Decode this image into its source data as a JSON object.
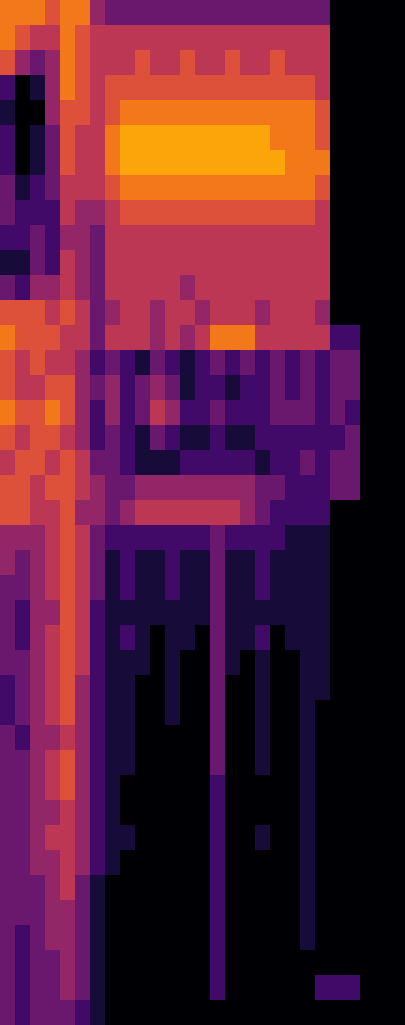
{
  "chart_data": {
    "type": "heatmap",
    "color": "inferno",
    "tick_labels": false,
    "zlim": [
      0,
      10
    ],
    "cells": [
      [
        7,
        7,
        7,
        6,
        7,
        7,
        4,
        3,
        3,
        3,
        3,
        3,
        3,
        3,
        3,
        3,
        3,
        3,
        3,
        3,
        3,
        3,
        0,
        0,
        0,
        0,
        0
      ],
      [
        7,
        6,
        5,
        5,
        7,
        6,
        5,
        5,
        5,
        5,
        5,
        5,
        5,
        5,
        5,
        5,
        5,
        5,
        5,
        5,
        5,
        5,
        0,
        0,
        0,
        0,
        0
      ],
      [
        6,
        4,
        3,
        4,
        7,
        6,
        5,
        5,
        5,
        6,
        5,
        5,
        6,
        5,
        5,
        6,
        5,
        5,
        6,
        5,
        5,
        5,
        0,
        0,
        0,
        0,
        0
      ],
      [
        2,
        0,
        1,
        4,
        7,
        6,
        5,
        6,
        6,
        6,
        6,
        6,
        6,
        6,
        6,
        6,
        6,
        6,
        6,
        6,
        6,
        5,
        0,
        0,
        0,
        0,
        0
      ],
      [
        1,
        0,
        0,
        4,
        6,
        6,
        5,
        6,
        7,
        7,
        7,
        7,
        7,
        7,
        7,
        7,
        7,
        7,
        7,
        7,
        7,
        6,
        0,
        0,
        0,
        0,
        0
      ],
      [
        2,
        0,
        1,
        3,
        6,
        5,
        5,
        7,
        8,
        8,
        8,
        8,
        8,
        8,
        8,
        8,
        8,
        8,
        7,
        7,
        7,
        6,
        0,
        0,
        0,
        0,
        0
      ],
      [
        2,
        0,
        1,
        3,
        6,
        5,
        5,
        7,
        8,
        8,
        8,
        8,
        8,
        8,
        8,
        8,
        8,
        8,
        8,
        7,
        7,
        7,
        0,
        0,
        0,
        0,
        0
      ],
      [
        3,
        1,
        2,
        3,
        5,
        5,
        5,
        6,
        7,
        7,
        7,
        7,
        7,
        7,
        7,
        7,
        7,
        7,
        7,
        7,
        7,
        6,
        0,
        0,
        0,
        0,
        0
      ],
      [
        3,
        2,
        2,
        2,
        5,
        4,
        4,
        5,
        6,
        6,
        6,
        6,
        6,
        6,
        6,
        6,
        6,
        6,
        6,
        6,
        6,
        5,
        0,
        0,
        0,
        0,
        0
      ],
      [
        2,
        2,
        3,
        2,
        4,
        4,
        3,
        5,
        5,
        5,
        5,
        5,
        5,
        5,
        5,
        5,
        5,
        5,
        5,
        5,
        5,
        5,
        0,
        0,
        0,
        0,
        0
      ],
      [
        1,
        1,
        3,
        2,
        5,
        4,
        3,
        5,
        5,
        5,
        5,
        5,
        5,
        5,
        5,
        5,
        5,
        5,
        5,
        5,
        5,
        5,
        0,
        0,
        0,
        0,
        0
      ],
      [
        3,
        2,
        4,
        4,
        5,
        4,
        3,
        5,
        5,
        5,
        5,
        5,
        4,
        5,
        5,
        5,
        5,
        5,
        5,
        5,
        5,
        5,
        0,
        0,
        0,
        0,
        0
      ],
      [
        6,
        6,
        6,
        5,
        6,
        5,
        3,
        4,
        5,
        5,
        4,
        5,
        5,
        4,
        5,
        5,
        5,
        4,
        5,
        5,
        5,
        4,
        0,
        0,
        0,
        0,
        0
      ],
      [
        7,
        6,
        6,
        6,
        5,
        5,
        3,
        5,
        5,
        5,
        4,
        5,
        4,
        5,
        7,
        7,
        7,
        5,
        5,
        5,
        5,
        5,
        2,
        2,
        0,
        0,
        0
      ],
      [
        6,
        5,
        6,
        5,
        5,
        4,
        2,
        3,
        2,
        1,
        3,
        2,
        1,
        2,
        3,
        2,
        3,
        2,
        3,
        2,
        3,
        2,
        3,
        3,
        0,
        0,
        0
      ],
      [
        6,
        5,
        5,
        6,
        6,
        4,
        3,
        4,
        2,
        3,
        4,
        3,
        1,
        2,
        2,
        1,
        2,
        2,
        3,
        2,
        3,
        2,
        3,
        3,
        0,
        0,
        0
      ],
      [
        7,
        6,
        6,
        7,
        6,
        4,
        2,
        4,
        2,
        3,
        5,
        4,
        2,
        2,
        3,
        2,
        2,
        2,
        3,
        3,
        3,
        2,
        3,
        2,
        0,
        0,
        0
      ],
      [
        6,
        5,
        6,
        6,
        5,
        4,
        2,
        3,
        2,
        1,
        3,
        2,
        1,
        1,
        2,
        1,
        1,
        2,
        2,
        2,
        2,
        2,
        2,
        3,
        0,
        0,
        0
      ],
      [
        5,
        6,
        6,
        5,
        6,
        5,
        3,
        3,
        2,
        1,
        1,
        1,
        2,
        2,
        2,
        2,
        2,
        1,
        2,
        2,
        3,
        2,
        3,
        3,
        0,
        0,
        0
      ],
      [
        6,
        6,
        5,
        6,
        6,
        5,
        4,
        3,
        3,
        4,
        4,
        4,
        4,
        4,
        4,
        4,
        4,
        3,
        3,
        2,
        2,
        2,
        3,
        3,
        0,
        0,
        0
      ],
      [
        6,
        6,
        5,
        5,
        6,
        4,
        4,
        3,
        4,
        5,
        5,
        5,
        5,
        5,
        5,
        5,
        4,
        3,
        2,
        2,
        2,
        2,
        0,
        0,
        0,
        0,
        0
      ],
      [
        4,
        4,
        4,
        5,
        6,
        5,
        3,
        2,
        2,
        2,
        2,
        2,
        2,
        2,
        3,
        2,
        2,
        2,
        2,
        1,
        1,
        1,
        0,
        0,
        0,
        0,
        0
      ],
      [
        4,
        3,
        4,
        5,
        6,
        5,
        3,
        1,
        2,
        1,
        1,
        2,
        1,
        1,
        3,
        1,
        1,
        2,
        1,
        1,
        1,
        1,
        0,
        0,
        0,
        0,
        0
      ],
      [
        3,
        3,
        4,
        5,
        6,
        5,
        3,
        1,
        2,
        1,
        1,
        2,
        1,
        1,
        3,
        1,
        1,
        2,
        1,
        1,
        1,
        1,
        0,
        0,
        0,
        0,
        0
      ],
      [
        3,
        2,
        4,
        4,
        6,
        5,
        2,
        1,
        1,
        1,
        1,
        1,
        1,
        1,
        3,
        1,
        1,
        1,
        1,
        1,
        1,
        1,
        0,
        0,
        0,
        0,
        0
      ],
      [
        3,
        2,
        4,
        5,
        6,
        5,
        2,
        1,
        2,
        1,
        0,
        1,
        1,
        0,
        3,
        1,
        1,
        2,
        0,
        1,
        1,
        1,
        0,
        0,
        0,
        0,
        0
      ],
      [
        3,
        3,
        4,
        5,
        6,
        5,
        2,
        1,
        1,
        1,
        0,
        1,
        0,
        0,
        3,
        1,
        0,
        1,
        0,
        0,
        1,
        1,
        0,
        0,
        0,
        0,
        0
      ],
      [
        2,
        3,
        4,
        5,
        6,
        4,
        2,
        1,
        1,
        0,
        0,
        1,
        0,
        0,
        3,
        0,
        0,
        1,
        0,
        0,
        1,
        1,
        0,
        0,
        0,
        0,
        0
      ],
      [
        2,
        3,
        4,
        5,
        6,
        4,
        2,
        1,
        1,
        0,
        0,
        1,
        0,
        0,
        3,
        0,
        0,
        1,
        0,
        0,
        1,
        0,
        0,
        0,
        0,
        0,
        0
      ],
      [
        3,
        2,
        4,
        4,
        5,
        4,
        2,
        1,
        1,
        0,
        0,
        0,
        0,
        0,
        3,
        0,
        0,
        1,
        0,
        0,
        1,
        0,
        0,
        0,
        0,
        0,
        0
      ],
      [
        3,
        3,
        4,
        5,
        6,
        4,
        2,
        1,
        1,
        0,
        0,
        0,
        0,
        0,
        3,
        0,
        0,
        1,
        0,
        0,
        1,
        0,
        0,
        0,
        0,
        0,
        0
      ],
      [
        3,
        3,
        4,
        5,
        6,
        4,
        2,
        1,
        0,
        0,
        0,
        0,
        0,
        0,
        2,
        0,
        0,
        0,
        0,
        0,
        1,
        0,
        0,
        0,
        0,
        0,
        0
      ],
      [
        3,
        3,
        4,
        4,
        5,
        4,
        2,
        1,
        0,
        0,
        0,
        0,
        0,
        0,
        2,
        0,
        0,
        0,
        0,
        0,
        1,
        0,
        0,
        0,
        0,
        0,
        0
      ],
      [
        3,
        3,
        4,
        5,
        5,
        4,
        2,
        1,
        1,
        0,
        0,
        0,
        0,
        0,
        2,
        0,
        0,
        1,
        0,
        0,
        1,
        0,
        0,
        0,
        0,
        0,
        0
      ],
      [
        3,
        3,
        4,
        4,
        5,
        4,
        2,
        1,
        0,
        0,
        0,
        0,
        0,
        0,
        2,
        0,
        0,
        0,
        0,
        0,
        1,
        0,
        0,
        0,
        0,
        0,
        0
      ],
      [
        3,
        3,
        3,
        4,
        5,
        3,
        1,
        0,
        0,
        0,
        0,
        0,
        0,
        0,
        2,
        0,
        0,
        0,
        0,
        0,
        1,
        0,
        0,
        0,
        0,
        0,
        0
      ],
      [
        3,
        3,
        3,
        4,
        4,
        3,
        1,
        0,
        0,
        0,
        0,
        0,
        0,
        0,
        2,
        0,
        0,
        0,
        0,
        0,
        1,
        0,
        0,
        0,
        0,
        0,
        0
      ],
      [
        3,
        2,
        3,
        4,
        4,
        3,
        1,
        0,
        0,
        0,
        0,
        0,
        0,
        0,
        2,
        0,
        0,
        0,
        0,
        0,
        1,
        0,
        0,
        0,
        0,
        0,
        0
      ],
      [
        3,
        2,
        3,
        3,
        4,
        3,
        1,
        0,
        0,
        0,
        0,
        0,
        0,
        0,
        2,
        0,
        0,
        0,
        0,
        0,
        0,
        0,
        0,
        0,
        0,
        0,
        0
      ],
      [
        3,
        2,
        3,
        3,
        4,
        3,
        1,
        0,
        0,
        0,
        0,
        0,
        0,
        0,
        2,
        0,
        0,
        0,
        0,
        0,
        0,
        2,
        2,
        2,
        0,
        0,
        0
      ],
      [
        3,
        2,
        3,
        3,
        3,
        2,
        1,
        0,
        0,
        0,
        0,
        0,
        0,
        0,
        0,
        0,
        0,
        0,
        0,
        0,
        0,
        0,
        0,
        0,
        0,
        0,
        0
      ]
    ]
  }
}
